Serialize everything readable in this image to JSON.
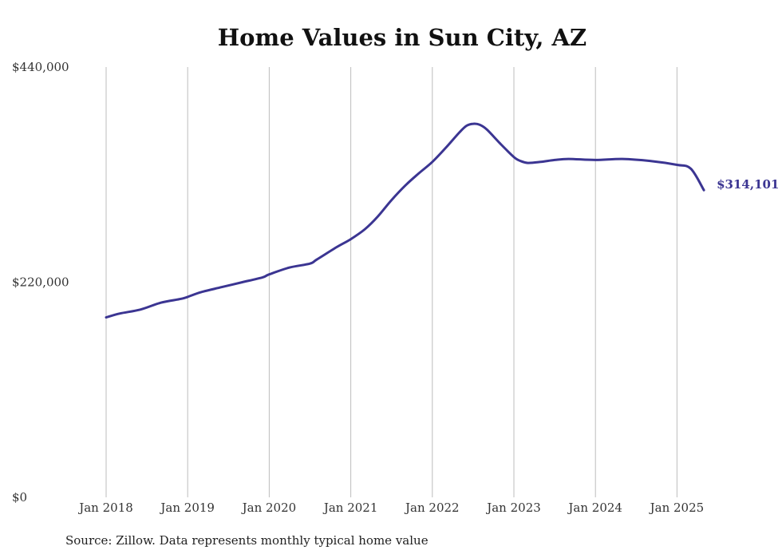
{
  "chart_data": {
    "type": "line",
    "title": "Home Values in Sun City, AZ",
    "xlabel": "",
    "ylabel": "",
    "x_tick_labels": [
      "Jan 2018",
      "Jan 2019",
      "Jan 2020",
      "Jan 2021",
      "Jan 2022",
      "Jan 2023",
      "Jan 2024",
      "Jan 2025"
    ],
    "y_tick_labels": [
      "$0",
      "$220,000",
      "$440,000"
    ],
    "y_ticks": [
      0,
      220000,
      440000
    ],
    "ylim": [
      0,
      440000
    ],
    "xlim": [
      2018.0,
      2025.33
    ],
    "grid": "vertical lines at x ticks",
    "end_label": "$314,101",
    "colors": {
      "line": "#3b3592",
      "grid": "#bdbdbd",
      "text": "#333333"
    },
    "series": [
      {
        "x": [
          2018.0,
          2018.17,
          2018.42,
          2018.67,
          2018.92,
          2019.0,
          2019.17,
          2019.42,
          2019.67,
          2019.92,
          2020.0,
          2020.25,
          2020.5,
          2020.58,
          2020.83,
          2021.0,
          2021.17,
          2021.33,
          2021.5,
          2021.67,
          2021.83,
          2022.0,
          2022.17,
          2022.33,
          2022.42,
          2022.5,
          2022.58,
          2022.67,
          2022.83,
          2023.0,
          2023.08,
          2023.17,
          2023.33,
          2023.5,
          2023.67,
          2024.0,
          2024.33,
          2024.67,
          2025.0,
          2025.17,
          2025.33
        ],
        "values": [
          184000,
          188000,
          192000,
          199000,
          203000,
          205000,
          210000,
          215000,
          220000,
          225000,
          228000,
          235000,
          239000,
          243000,
          256000,
          264000,
          274000,
          287000,
          304000,
          319000,
          331000,
          343000,
          358000,
          373000,
          380000,
          382000,
          381000,
          376000,
          362000,
          348000,
          344000,
          342000,
          343000,
          345000,
          346000,
          345000,
          346000,
          344000,
          340000,
          336000,
          314101
        ]
      }
    ]
  },
  "source_note": "Source: Zillow. Data represents monthly typical home value"
}
